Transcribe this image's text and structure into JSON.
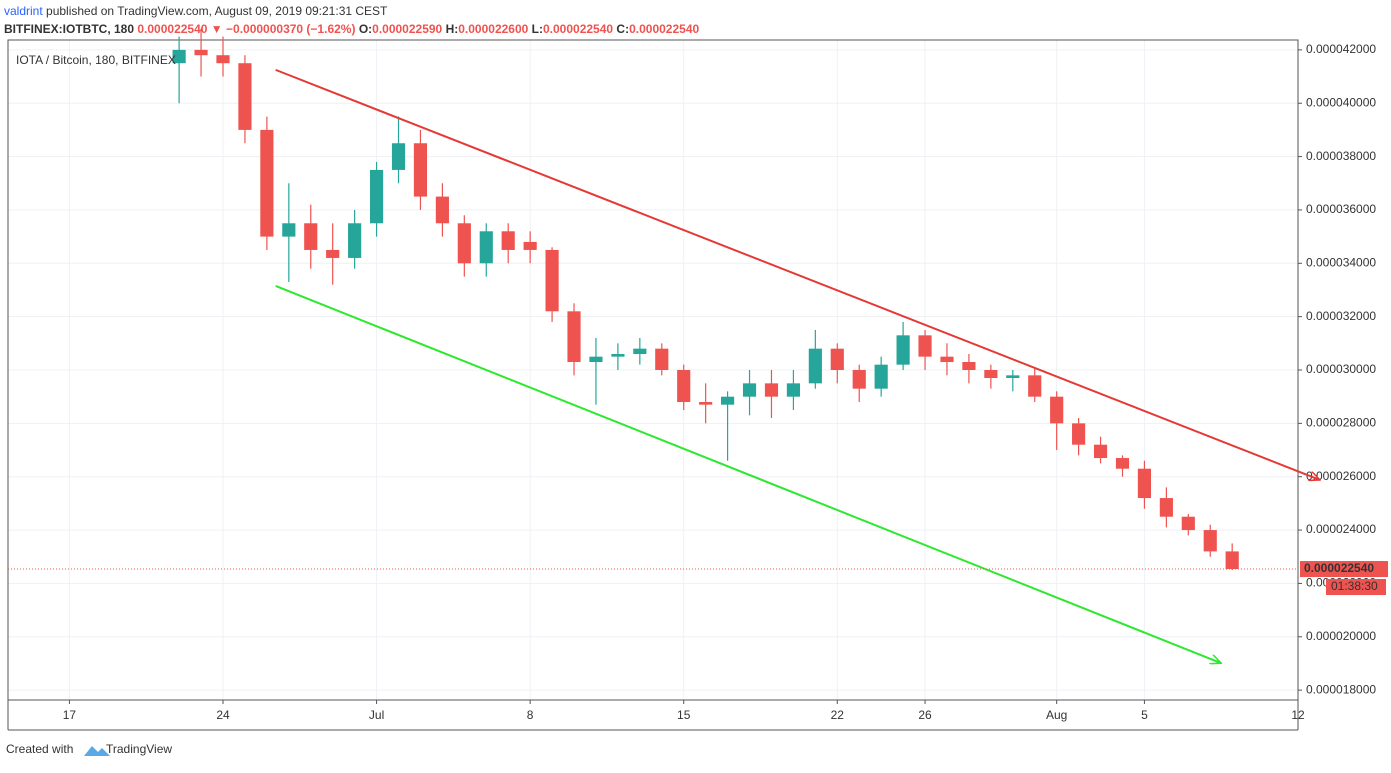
{
  "header": {
    "author": "valdrint",
    "published": "published on TradingView.com, August 09, 2019 09:21:31 CEST",
    "symbol": "BITFINEX:IOTBTC, 180",
    "price": "0.000022540",
    "arrow": "▼",
    "change": "−0.000000370 (−1.62%)",
    "open_label": "O:",
    "open": "0.000022590",
    "high_label": "H:",
    "high": "0.000022600",
    "low_label": "L:",
    "low": "0.000022540",
    "close_label": "C:",
    "close": "0.000022540"
  },
  "footer": {
    "created": "Created with",
    "brand": "TradingView"
  },
  "chart_data": {
    "type": "candlestick",
    "legend_title": "IOTA / Bitcoin, 180, BITFINEX",
    "up_color": "#26a69a",
    "down_color": "#ef5350",
    "grid": true,
    "x": [
      22,
      23,
      24,
      25,
      26,
      27,
      28,
      29,
      30,
      31,
      32,
      33,
      34,
      35,
      36,
      37,
      38,
      39,
      40,
      41,
      42,
      43,
      44,
      45,
      46,
      47,
      48,
      49,
      50,
      51,
      52,
      53,
      54,
      55,
      56,
      57,
      58,
      59,
      60,
      61,
      62,
      63,
      64,
      65,
      66,
      67,
      68,
      69,
      70
    ],
    "open": [
      4.15e-05,
      4.2e-05,
      4.18e-05,
      4.15e-05,
      3.9e-05,
      3.5e-05,
      3.55e-05,
      3.45e-05,
      3.42e-05,
      3.55e-05,
      3.75e-05,
      3.85e-05,
      3.65e-05,
      3.55e-05,
      3.4e-05,
      3.52e-05,
      3.48e-05,
      3.45e-05,
      3.22e-05,
      3.03e-05,
      3.05e-05,
      3.06e-05,
      3.08e-05,
      3e-05,
      2.88e-05,
      2.87e-05,
      2.9e-05,
      2.95e-05,
      2.9e-05,
      2.95e-05,
      3.08e-05,
      3e-05,
      2.93e-05,
      3.02e-05,
      3.13e-05,
      3.05e-05,
      3.03e-05,
      3e-05,
      2.97e-05,
      2.98e-05,
      2.9e-05,
      2.8e-05,
      2.72e-05,
      2.67e-05,
      2.63e-05,
      2.52e-05,
      2.45e-05,
      2.4e-05,
      2.32e-05
    ],
    "high": [
      4.25e-05,
      4.28e-05,
      4.25e-05,
      4.18e-05,
      3.95e-05,
      3.7e-05,
      3.62e-05,
      3.55e-05,
      3.6e-05,
      3.78e-05,
      3.95e-05,
      3.9e-05,
      3.7e-05,
      3.58e-05,
      3.55e-05,
      3.55e-05,
      3.52e-05,
      3.46e-05,
      3.25e-05,
      3.12e-05,
      3.1e-05,
      3.12e-05,
      3.1e-05,
      3.02e-05,
      2.95e-05,
      2.92e-05,
      3e-05,
      3e-05,
      3e-05,
      3.15e-05,
      3.1e-05,
      3.02e-05,
      3.05e-05,
      3.18e-05,
      3.15e-05,
      3.1e-05,
      3.06e-05,
      3.02e-05,
      3e-05,
      3.01e-05,
      2.92e-05,
      2.82e-05,
      2.75e-05,
      2.68e-05,
      2.66e-05,
      2.56e-05,
      2.46e-05,
      2.42e-05,
      2.35e-05
    ],
    "low": [
      4e-05,
      4.1e-05,
      4.1e-05,
      3.85e-05,
      3.45e-05,
      3.33e-05,
      3.38e-05,
      3.32e-05,
      3.38e-05,
      3.5e-05,
      3.7e-05,
      3.6e-05,
      3.5e-05,
      3.35e-05,
      3.35e-05,
      3.4e-05,
      3.4e-05,
      3.18e-05,
      2.98e-05,
      2.87e-05,
      3e-05,
      3.02e-05,
      2.98e-05,
      2.85e-05,
      2.8e-05,
      2.66e-05,
      2.83e-05,
      2.82e-05,
      2.85e-05,
      2.93e-05,
      2.95e-05,
      2.88e-05,
      2.9e-05,
      3e-05,
      3e-05,
      2.98e-05,
      2.95e-05,
      2.93e-05,
      2.92e-05,
      2.88e-05,
      2.7e-05,
      2.68e-05,
      2.65e-05,
      2.6e-05,
      2.48e-05,
      2.41e-05,
      2.38e-05,
      2.3e-05,
      2.25e-05
    ],
    "close": [
      4.2e-05,
      4.18e-05,
      4.15e-05,
      3.9e-05,
      3.5e-05,
      3.55e-05,
      3.45e-05,
      3.42e-05,
      3.55e-05,
      3.75e-05,
      3.85e-05,
      3.65e-05,
      3.55e-05,
      3.4e-05,
      3.52e-05,
      3.45e-05,
      3.45e-05,
      3.22e-05,
      3.03e-05,
      3.05e-05,
      3.06e-05,
      3.08e-05,
      3e-05,
      2.88e-05,
      2.87e-05,
      2.9e-05,
      2.95e-05,
      2.9e-05,
      2.95e-05,
      3.08e-05,
      3e-05,
      2.93e-05,
      3.02e-05,
      3.13e-05,
      3.05e-05,
      3.03e-05,
      3e-05,
      2.97e-05,
      2.98e-05,
      2.9e-05,
      2.8e-05,
      2.72e-05,
      2.67e-05,
      2.63e-05,
      2.52e-05,
      2.45e-05,
      2.4e-05,
      2.32e-05,
      2.254e-05
    ],
    "xlim": [
      14.2,
      73
    ],
    "xticks": [
      {
        "value": 17,
        "label": "17"
      },
      {
        "value": 24,
        "label": "24"
      },
      {
        "value": 31,
        "label": "Jul"
      },
      {
        "value": 38,
        "label": "8"
      },
      {
        "value": 45,
        "label": "15"
      },
      {
        "value": 52,
        "label": "22"
      },
      {
        "value": 56,
        "label": "26"
      },
      {
        "value": 62,
        "label": "Aug"
      },
      {
        "value": 66,
        "label": "5"
      },
      {
        "value": 73,
        "label": "12"
      }
    ],
    "ylim": [
      1.763e-05,
      4.237e-05
    ],
    "yticks": [
      {
        "value": 4.2e-05,
        "label": "0.000042000"
      },
      {
        "value": 4e-05,
        "label": "0.000040000"
      },
      {
        "value": 3.8e-05,
        "label": "0.000038000"
      },
      {
        "value": 3.6e-05,
        "label": "0.000036000"
      },
      {
        "value": 3.4e-05,
        "label": "0.000034000"
      },
      {
        "value": 3.2e-05,
        "label": "0.000032000"
      },
      {
        "value": 3e-05,
        "label": "0.000030000"
      },
      {
        "value": 2.8e-05,
        "label": "0.000028000"
      },
      {
        "value": 2.6e-05,
        "label": "0.000026000"
      },
      {
        "value": 2.4e-05,
        "label": "0.000024000"
      },
      {
        "value": 2.2e-05,
        "label": "0.000022000"
      },
      {
        "value": 2e-05,
        "label": "0.000020000"
      },
      {
        "value": 1.8e-05,
        "label": "0.000018000"
      }
    ],
    "last_price": {
      "value": 2.254e-05,
      "label": "0.000022540",
      "countdown": "01:38:30",
      "color": "#ef5350"
    },
    "trend_lines": [
      {
        "color": "#e53935",
        "x": [
          26.4,
          74.0
        ],
        "y": [
          4.125e-05,
          2.588e-05
        ]
      },
      {
        "color": "#2ee82e",
        "x": [
          26.4,
          69.5
        ],
        "y": [
          3.315e-05,
          1.901e-05
        ]
      }
    ]
  }
}
